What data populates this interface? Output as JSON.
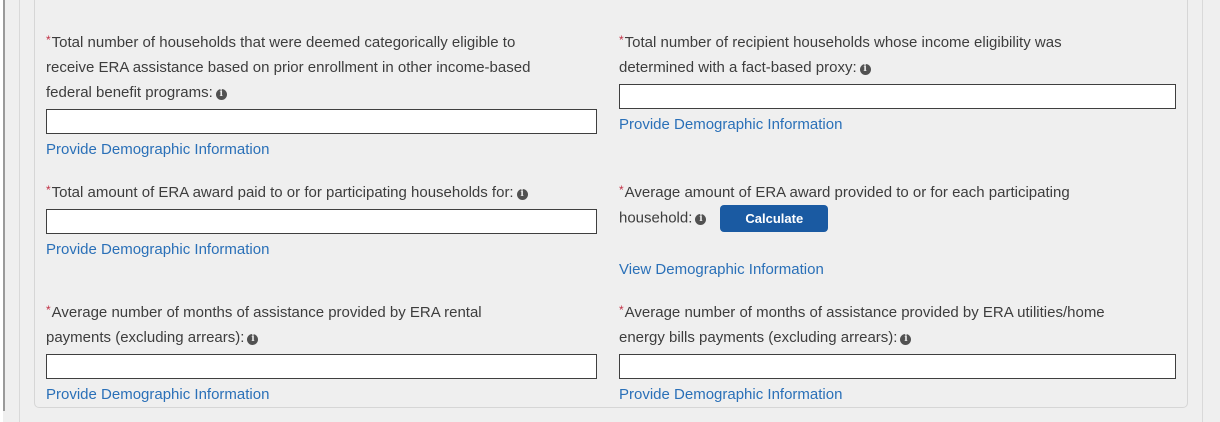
{
  "panel": {
    "required_marker": "*",
    "info_icon_glyph": "i",
    "colors": {
      "page_bg": "#efefef",
      "panel_border": "#d6d6d6",
      "label_gray": "#3d3d3d",
      "required_red": "#c13145",
      "link_blue": "#2a70b8",
      "button_blue": "#1a5aa2",
      "button_text": "#ffffff",
      "input_border": "#3f3f3f",
      "info_icon_bg": "#515151"
    },
    "fields": [
      {
        "label": "Total number of households that were deemed categorically eligible to receive ERA assistance based on prior enrollment in other income-based federal benefit programs:",
        "value": "",
        "link": "Provide Demographic Information"
      },
      {
        "label": "Total number of recipient households whose income eligibility was determined with a fact-based proxy:",
        "value": "",
        "link": "Provide Demographic Information"
      },
      {
        "label": "Total amount of ERA award paid to or for participating households for:",
        "value": "",
        "link": "Provide Demographic Information"
      },
      {
        "label": "Average amount of ERA award provided to or for each participating household:",
        "button": "Calculate",
        "link": "View Demographic Information"
      },
      {
        "label": "Average number of months of assistance provided by ERA rental payments (excluding arrears):",
        "value": "",
        "link": "Provide Demographic Information"
      },
      {
        "label": "Average number of months of assistance provided by ERA utilities/home energy bills payments (excluding arrears):",
        "value": "",
        "link": "Provide Demographic Information"
      }
    ]
  }
}
